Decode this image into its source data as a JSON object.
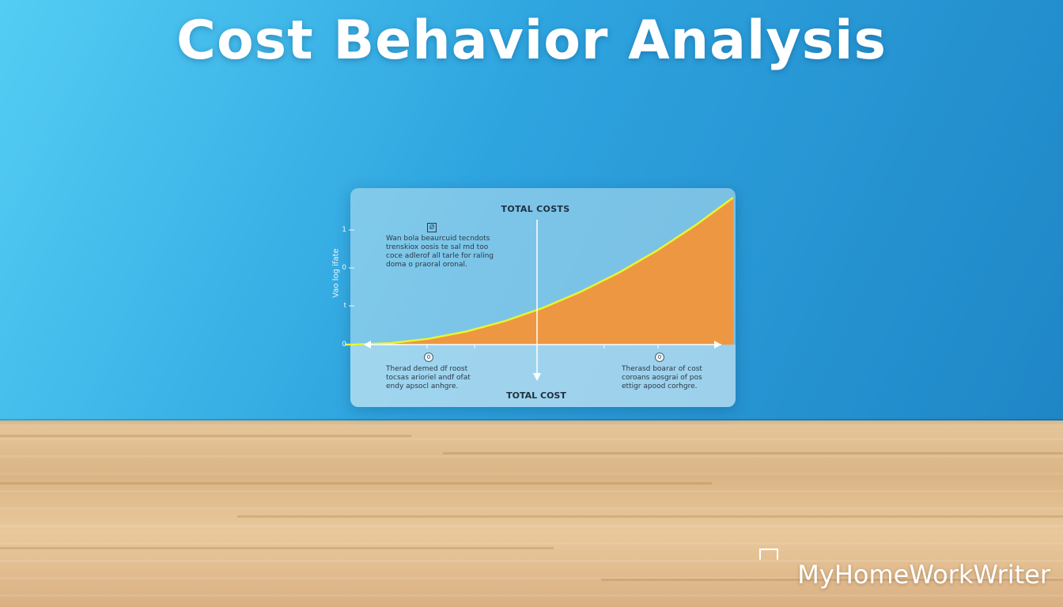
{
  "title": "Cost Behavior Analysis",
  "brand": "MyHomeWorkWriter",
  "colors": {
    "wall": "#2ea4df",
    "curve": "#e8f531",
    "fill": "#f3953a",
    "floor": "#dab485"
  },
  "chart_data": {
    "type": "area",
    "title": "TOTAL COSTS",
    "xlabel": "TOTAL COST",
    "ylabel": "Vao log ifate",
    "yticks": [
      "1",
      "0",
      "t",
      "o",
      "0"
    ],
    "x": [
      0,
      0.1,
      0.2,
      0.3,
      0.4,
      0.5,
      0.6,
      0.7,
      0.8,
      0.9,
      1.0
    ],
    "series": [
      {
        "values": [
          0,
          0.01,
          0.04,
          0.09,
          0.16,
          0.25,
          0.36,
          0.49,
          0.64,
          0.81,
          1.0
        ]
      }
    ],
    "xlim": [
      0,
      1
    ],
    "ylim": [
      0,
      1.0
    ],
    "grid": false,
    "markers": [
      "0",
      "0"
    ],
    "annotations": {
      "top_left_icon": "Ø",
      "top_left": "Wan bola beaurcuid tecndots\ntrenskiox oosis te sal md too\ncoce adlerof all tarle for raling\ndoma o praoral oronal.",
      "bottom_left": "Therad demed df roost\ntocsas arioriel andf ofat\nendy apsocl anhgre.",
      "bottom_right": "Therasd boarar of cost\ncoroans aosgrai of pos\nettigr apood corhgre."
    }
  }
}
